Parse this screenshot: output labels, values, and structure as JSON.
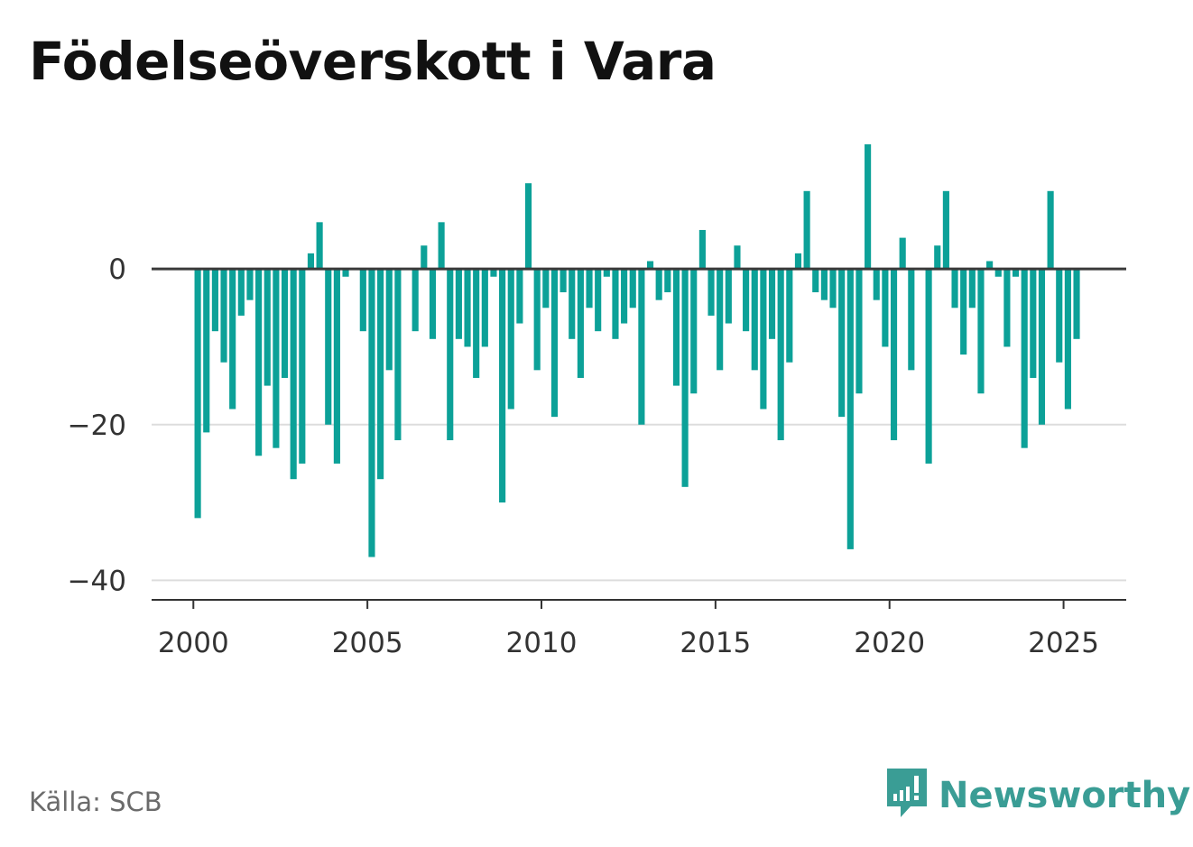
{
  "title": "Födelseöverskott i Vara",
  "source": "Källa: SCB",
  "brand": {
    "name": "Newsworthy",
    "logo_icon": "newsworthy-bar-chart-icon"
  },
  "colors": {
    "bar": "#0ca198",
    "zero_line": "#3a3a3a",
    "grid": "#dddddd",
    "axis": "#333333",
    "brand": "#3a9d95"
  },
  "chart_data": {
    "type": "bar",
    "title": "Födelseöverskott i Vara",
    "xlabel": "",
    "ylabel": "",
    "grid": true,
    "x_ticks": [
      2000,
      2005,
      2010,
      2015,
      2020,
      2025
    ],
    "y_ticks": [
      0,
      -20,
      -40
    ],
    "y_tick_labels": [
      "0",
      "−20",
      "−40"
    ],
    "xlim": [
      1998.8,
      2026.8
    ],
    "ylim": [
      -42.5,
      16
    ],
    "series": [
      {
        "x": [
          2000.125,
          2000.375,
          2000.625,
          2000.875,
          2001.125,
          2001.375,
          2001.625,
          2001.875,
          2002.125,
          2002.375,
          2002.625,
          2002.875,
          2003.125,
          2003.375,
          2003.625,
          2003.875,
          2004.125,
          2004.375,
          2004.625,
          2004.875,
          2005.125,
          2005.375,
          2005.625,
          2005.875,
          2006.125,
          2006.375,
          2006.625,
          2006.875,
          2007.125,
          2007.375,
          2007.625,
          2007.875,
          2008.125,
          2008.375,
          2008.625,
          2008.875,
          2009.125,
          2009.375,
          2009.625,
          2009.875,
          2010.125,
          2010.375,
          2010.625,
          2010.875,
          2011.125,
          2011.375,
          2011.625,
          2011.875,
          2012.125,
          2012.375,
          2012.625,
          2012.875,
          2013.125,
          2013.375,
          2013.625,
          2013.875,
          2014.125,
          2014.375,
          2014.625,
          2014.875,
          2015.125,
          2015.375,
          2015.625,
          2015.875,
          2016.125,
          2016.375,
          2016.625,
          2016.875,
          2017.125,
          2017.375,
          2017.625,
          2017.875,
          2018.125,
          2018.375,
          2018.625,
          2018.875,
          2019.125,
          2019.375,
          2019.625,
          2019.875,
          2020.125,
          2020.375,
          2020.625,
          2020.875,
          2021.125,
          2021.375,
          2021.625,
          2021.875,
          2022.125,
          2022.375,
          2022.625,
          2022.875,
          2023.125,
          2023.375,
          2023.625,
          2023.875,
          2024.125,
          2024.375,
          2024.625,
          2024.875,
          2025.125,
          2025.375
        ],
        "values": [
          -32,
          -21,
          -8,
          -12,
          -18,
          -6,
          -4,
          -24,
          -15,
          -23,
          -14,
          -27,
          -25,
          2,
          6,
          -20,
          -25,
          -1,
          0,
          -8,
          -37,
          -27,
          -13,
          -22,
          0,
          -8,
          3,
          -9,
          6,
          -22,
          -9,
          -10,
          -14,
          -10,
          -1,
          -30,
          -18,
          -7,
          11,
          -13,
          -5,
          -19,
          -3,
          -9,
          -14,
          -5,
          -8,
          -1,
          -9,
          -7,
          -5,
          -20,
          1,
          -4,
          -3,
          -15,
          -28,
          -16,
          5,
          -6,
          -13,
          -7,
          3,
          -8,
          -13,
          -18,
          -9,
          -22,
          -12,
          2,
          10,
          -3,
          -4,
          -5,
          -19,
          -36,
          -16,
          16,
          -4,
          -10,
          -22,
          4,
          -13,
          0,
          -25,
          3,
          10,
          -5,
          -11,
          -5,
          -16,
          1,
          -1,
          -10,
          -1,
          -23,
          -14,
          -20,
          10,
          -12,
          -18,
          -9
        ]
      }
    ]
  }
}
